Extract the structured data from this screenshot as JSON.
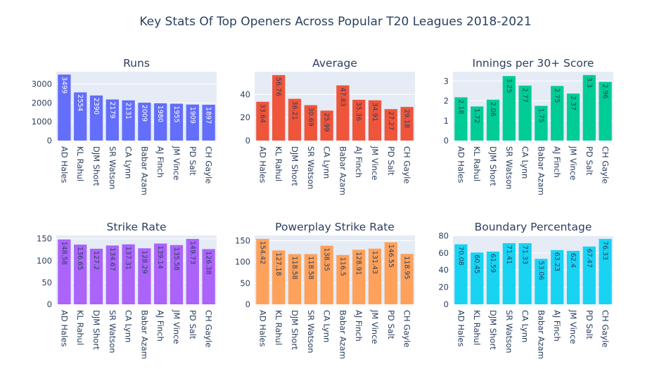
{
  "title": "Key Stats Of Top Openers Across Popular T20 Leagues 2018-2021",
  "chart_data": [
    {
      "type": "bar",
      "title": "Runs",
      "color": "#636efa",
      "categories": [
        "AD Hales",
        "KL Rahul",
        "DJM Short",
        "SR Watson",
        "CA Lynn",
        "Babar Azam",
        "AJ Finch",
        "JM Vince",
        "PD Salt",
        "CH Gayle"
      ],
      "values": [
        3499,
        2554,
        2390,
        2179,
        2131,
        2009,
        1980,
        1955,
        1909,
        1897
      ],
      "labels": [
        "3499",
        "2554",
        "2390",
        "2179",
        "2131",
        "2009",
        "1980",
        "1955",
        "1909",
        "1897"
      ],
      "ylim": [
        0,
        3650
      ],
      "yticks": [
        0,
        1000,
        2000,
        3000
      ],
      "label_color": "#ffffff",
      "label_pos": "inside"
    },
    {
      "type": "bar",
      "title": "Average",
      "color": "#ef553b",
      "categories": [
        "AD Hales",
        "KL Rahul",
        "DJM Short",
        "SR Watson",
        "CA Lynn",
        "Babar Azam",
        "AJ Finch",
        "JM Vince",
        "PD Salt",
        "CH Gayle"
      ],
      "values": [
        33.64,
        56.76,
        36.21,
        30.69,
        25.99,
        47.83,
        35.36,
        34.91,
        27.27,
        29.18
      ],
      "labels": [
        "33.64",
        "56.76",
        "36.21",
        "30.69",
        "25.99",
        "47.83",
        "35.36",
        "34.91",
        "27.27",
        "29.18"
      ],
      "ylim": [
        0,
        59.7
      ],
      "yticks": [
        0,
        20,
        40
      ],
      "label_color": "#2a3f5f",
      "label_pos": "inside"
    },
    {
      "type": "bar",
      "title": "Innings per 30+ Score",
      "color": "#00cc96",
      "categories": [
        "AD Hales",
        "KL Rahul",
        "DJM Short",
        "SR Watson",
        "CA Lynn",
        "Babar Azam",
        "AJ Finch",
        "JM Vince",
        "PD Salt",
        "CH Gayle"
      ],
      "values": [
        2.18,
        1.72,
        2.06,
        3.25,
        2.77,
        1.75,
        2.75,
        2.37,
        3.3,
        2.96
      ],
      "labels": [
        "2.18",
        "1.72",
        "2.06",
        "3.25",
        "2.77",
        "1.75",
        "2.75",
        "2.37",
        "3.3",
        "2.96"
      ],
      "ylim": [
        0,
        3.47
      ],
      "yticks": [
        0,
        1,
        2,
        3
      ],
      "label_color": "#2a3f5f",
      "label_pos": "inside"
    },
    {
      "type": "bar",
      "title": "Strike Rate",
      "color": "#ab63fa",
      "categories": [
        "AD Hales",
        "KL Rahul",
        "DJM Short",
        "SR Watson",
        "CA Lynn",
        "Babar Azam",
        "AJ Finch",
        "JM Vince",
        "PD Salt",
        "CH Gayle"
      ],
      "values": [
        148.58,
        136.65,
        127.2,
        134.67,
        137.31,
        128.29,
        139.14,
        135.58,
        149.73,
        126.38
      ],
      "labels": [
        "148.58",
        "136.65",
        "127.2",
        "134.67",
        "137.31",
        "128.29",
        "139.14",
        "135.58",
        "149.73",
        "126.38"
      ],
      "ylim": [
        0,
        157.6
      ],
      "yticks": [
        0,
        50,
        100,
        150
      ],
      "label_color": "#2a3f5f",
      "label_pos": "inside"
    },
    {
      "type": "bar",
      "title": "Powerplay Strike Rate",
      "color": "#ffa15a",
      "categories": [
        "AD Hales",
        "KL Rahul",
        "DJM Short",
        "SR Watson",
        "CA Lynn",
        "Babar Azam",
        "AJ Finch",
        "JM Vince",
        "PD Salt",
        "CH Gayle"
      ],
      "values": [
        154.42,
        127.18,
        118.58,
        118.58,
        138.35,
        116.5,
        128.91,
        131.43,
        146.55,
        118.95
      ],
      "labels": [
        "154.42",
        "127.18",
        "118.58",
        "118.58",
        "138.35",
        "116.5",
        "128.91",
        "131.43",
        "146.55",
        "118.95"
      ],
      "ylim": [
        0,
        162.5
      ],
      "yticks": [
        0,
        50,
        100,
        150
      ],
      "label_color": "#2a3f5f",
      "label_pos": "inside"
    },
    {
      "type": "bar",
      "title": "Boundary Percentage",
      "color": "#19d3f3",
      "categories": [
        "AD Hales",
        "KL Rahul",
        "DJM Short",
        "SR Watson",
        "CA Lynn",
        "Babar Azam",
        "AJ Finch",
        "JM Vince",
        "PD Salt",
        "CH Gayle"
      ],
      "values": [
        70.08,
        60.45,
        61.59,
        71.41,
        71.33,
        53.06,
        63.23,
        62.4,
        67.47,
        76.33
      ],
      "labels": [
        "70.08",
        "60.45",
        "61.59",
        "71.41",
        "71.33",
        "53.06",
        "63.23",
        "62.4",
        "67.47",
        "76.33"
      ],
      "ylim": [
        0,
        80.35
      ],
      "yticks": [
        0,
        20,
        40,
        60,
        80
      ],
      "label_color": "#2a3f5f",
      "label_pos": "inside"
    }
  ]
}
